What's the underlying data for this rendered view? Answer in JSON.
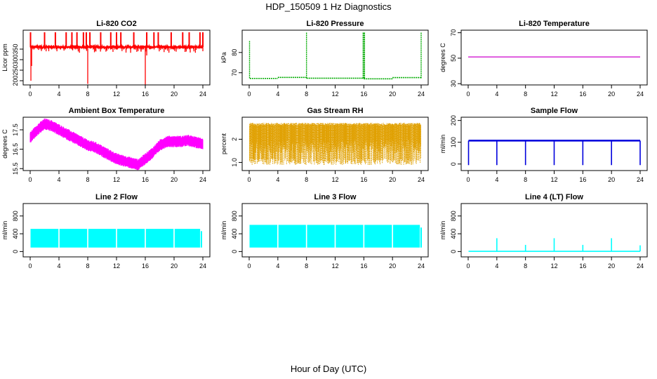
{
  "page": {
    "title": "HDP_150509  1 Hz Diagnostics",
    "xlabel": "Hour of Day (UTC)"
  },
  "chart_data": [
    {
      "type": "line",
      "title": "Li-820 CO2",
      "ylabel": "Licor ppm",
      "color": "#ff0000",
      "xlim": [
        0,
        24
      ],
      "xticks": [
        0,
        4,
        8,
        12,
        16,
        20,
        24
      ],
      "ylim": [
        180,
        440
      ],
      "yticks": [
        200,
        250,
        300,
        350
      ],
      "pattern": "spikes",
      "baseline": 360,
      "noise": 6,
      "spikes_up": [
        0.05,
        2.0,
        3.5,
        5.0,
        5.8,
        6.5,
        7.4,
        7.8,
        8.3,
        9.8,
        11.2,
        12.0,
        12.6,
        14.4,
        16.2,
        17.2,
        17.8,
        19.6,
        21.2,
        22.1,
        23.6,
        24.0
      ],
      "spike_up_to": 430,
      "spikes_down": [
        [
          0.1,
          200
        ],
        [
          0.2,
          270
        ],
        [
          8.0,
          185
        ],
        [
          16.0,
          180
        ],
        [
          16.2,
          320
        ],
        [
          24.0,
          340
        ]
      ]
    },
    {
      "type": "line",
      "title": "Li-820 Pressure",
      "ylabel": "kPa",
      "color": "#00aa00",
      "xlim": [
        0,
        24
      ],
      "xticks": [
        0,
        4,
        8,
        12,
        16,
        20,
        24
      ],
      "ylim": [
        64,
        91
      ],
      "yticks": [
        70,
        80
      ],
      "pattern": "pressure",
      "segments": [
        [
          0.1,
          4.0,
          67.2
        ],
        [
          4.0,
          8.0,
          67.7
        ],
        [
          8.0,
          16.0,
          67.3
        ],
        [
          16.0,
          20.0,
          67.0
        ],
        [
          20.0,
          24.0,
          67.6
        ]
      ],
      "spikes": [
        [
          0.05,
          86
        ],
        [
          8.0,
          90
        ],
        [
          15.9,
          90
        ],
        [
          16.0,
          90
        ],
        [
          16.1,
          90
        ],
        [
          24.0,
          90
        ]
      ]
    },
    {
      "type": "line",
      "title": "Li-820 Temperature",
      "ylabel": "degrees C",
      "color": "#cc00cc",
      "xlim": [
        0,
        24
      ],
      "xticks": [
        0,
        4,
        8,
        12,
        16,
        20,
        24
      ],
      "ylim": [
        29,
        72
      ],
      "yticks": [
        30,
        50,
        70
      ],
      "pattern": "flat",
      "value": 51
    },
    {
      "type": "line",
      "title": "Ambient Box Temperature",
      "ylabel": "degrees C",
      "color": "#ff00ff",
      "xlim": [
        0,
        24
      ],
      "xticks": [
        0,
        4,
        8,
        12,
        16,
        20,
        24
      ],
      "ylim": [
        15.4,
        18.15
      ],
      "yticks": [
        15.5,
        16.5,
        17.5
      ],
      "pattern": "band",
      "band": 0.35,
      "x": [
        0,
        1,
        2,
        3,
        4,
        5,
        6,
        7,
        8,
        9,
        10,
        11,
        12,
        13,
        14,
        15,
        16,
        17,
        18,
        19,
        20,
        21,
        22,
        23,
        24
      ],
      "y": [
        17.1,
        17.5,
        17.8,
        17.7,
        17.5,
        17.3,
        17.1,
        16.9,
        16.7,
        16.6,
        16.4,
        16.2,
        16.0,
        15.9,
        15.8,
        15.7,
        16.0,
        16.3,
        16.7,
        16.9,
        16.9,
        16.9,
        16.95,
        16.85,
        16.8
      ]
    },
    {
      "type": "line",
      "title": "Gas Stream RH",
      "ylabel": "percent",
      "color": "#e0a000",
      "xlim": [
        0,
        24
      ],
      "xticks": [
        0,
        4,
        8,
        12,
        16,
        20,
        24
      ],
      "ylim": [
        0.65,
        2.95
      ],
      "yticks": [
        1.0,
        2.0
      ],
      "pattern": "noise",
      "top": 2.65,
      "bottom": 0.9,
      "dense_floor": 2.0
    },
    {
      "type": "line",
      "title": "Sample Flow",
      "ylabel": "ml/min",
      "color": "#0000dd",
      "xlim": [
        0,
        24
      ],
      "xticks": [
        0,
        4,
        8,
        12,
        16,
        20,
        24
      ],
      "ylim": [
        -30,
        215
      ],
      "yticks": [
        0,
        100,
        200
      ],
      "pattern": "dips",
      "baseline": 107,
      "dips": [
        0.05,
        4.0,
        8.0,
        12.0,
        16.0,
        20.0,
        24.0
      ],
      "dip_to": -5
    },
    {
      "type": "line",
      "title": "Line 2 Flow",
      "ylabel": "ml/min",
      "color": "#00ffff",
      "xlim": [
        0,
        24
      ],
      "xticks": [
        0,
        4,
        8,
        12,
        16,
        20,
        24
      ],
      "ylim": [
        -120,
        1080
      ],
      "yticks": [
        0,
        400,
        800
      ],
      "pattern": "block",
      "low": 90,
      "high": 510,
      "gaps": [
        4.0,
        8.0,
        12.0,
        16.0,
        20.0
      ],
      "end": 23.7,
      "start": 0.05
    },
    {
      "type": "line",
      "title": "Line 3 Flow",
      "ylabel": "ml/min",
      "color": "#00ffff",
      "xlim": [
        0,
        24
      ],
      "xticks": [
        0,
        4,
        8,
        12,
        16,
        20,
        24
      ],
      "ylim": [
        -120,
        1080
      ],
      "yticks": [
        0,
        400,
        800
      ],
      "pattern": "block",
      "low": 90,
      "high": 600,
      "gaps": [
        4.0,
        8.0,
        12.0,
        16.0,
        20.0
      ],
      "end": 23.9,
      "start": 0.05
    },
    {
      "type": "line",
      "title": "Line 4 (LT) Flow",
      "ylabel": "ml/min",
      "color": "#00ffff",
      "xlim": [
        0,
        24
      ],
      "xticks": [
        0,
        4,
        8,
        12,
        16,
        20,
        24
      ],
      "ylim": [
        -120,
        1080
      ],
      "yticks": [
        0,
        400,
        800
      ],
      "pattern": "spikes_small",
      "baseline": 5,
      "peaks": [
        [
          4.0,
          300
        ],
        [
          8.0,
          150
        ],
        [
          12.0,
          300
        ],
        [
          16.0,
          150
        ],
        [
          20.0,
          300
        ],
        [
          24.0,
          140
        ]
      ]
    }
  ]
}
